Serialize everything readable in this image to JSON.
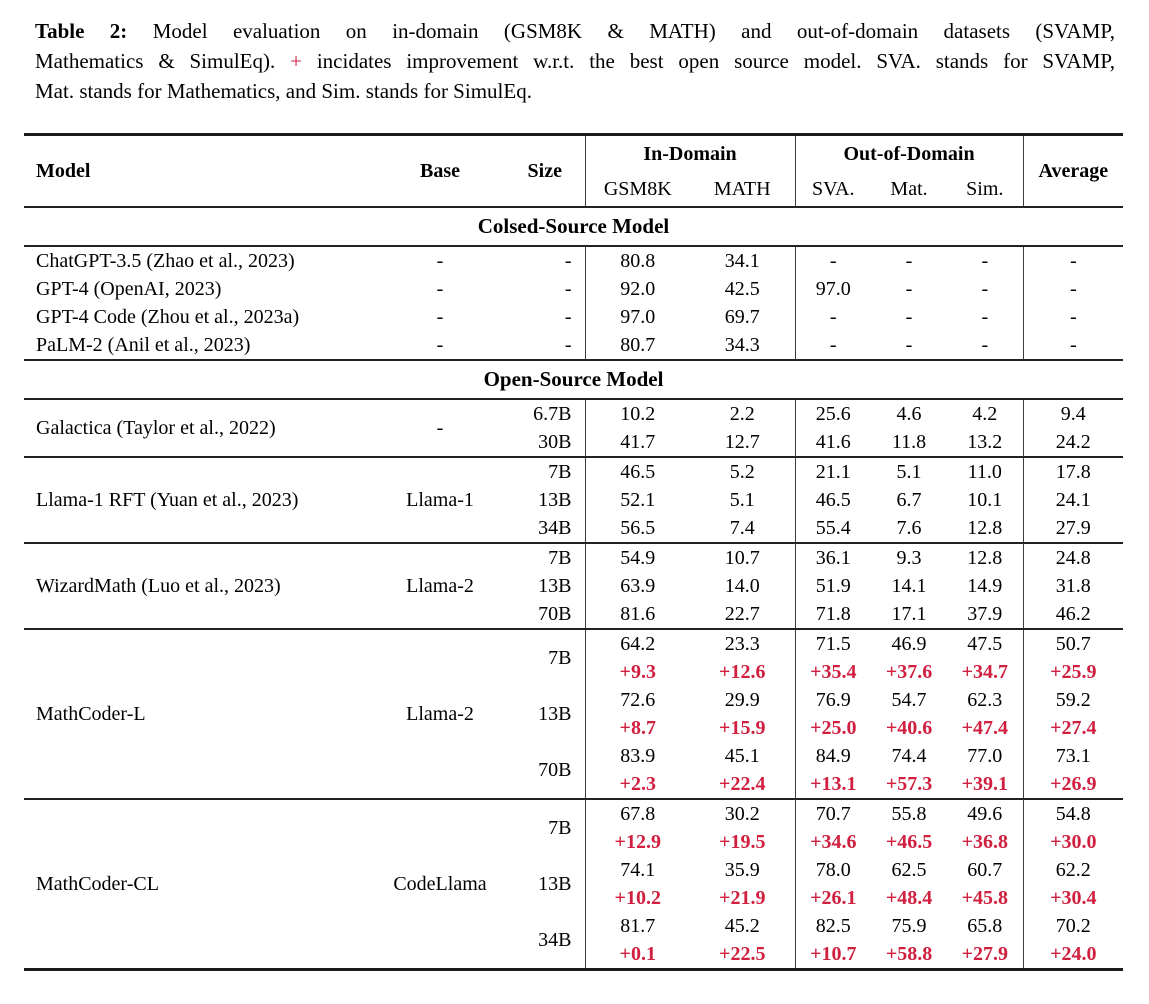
{
  "caption": {
    "line1_label": "Table 2:",
    "line1_text": "Model evaluation on in-domain (GSM8K & MATH) and out-of-domain datasets (SVAMP,",
    "line2_before_plus": "Mathematics & SimulEq).",
    "line2_plus": "+",
    "line2_after_plus": "incidates improvement w.r.t. the best open source model. SVA. stands for SVAMP,",
    "line3": "Mat. stands for Mathematics, and Sim. stands for SimulEq."
  },
  "colors": {
    "delta_red": "#d01f3f",
    "text": "#000000",
    "rule": "#222222"
  },
  "table": {
    "header": {
      "model": "Model",
      "base": "Base",
      "size": "Size",
      "in_domain": "In-Domain",
      "out_of_domain": "Out-of-Domain",
      "average": "Average",
      "subcolumns": [
        "GSM8K",
        "MATH",
        "SVA.",
        "Mat.",
        "Sim."
      ]
    },
    "sections": [
      {
        "title": "Colsed-Source Model",
        "ruled_groups": false,
        "groups": [
          {
            "model": "ChatGPT-3.5 (Zhao et al., 2023)",
            "base": "-",
            "rows": [
              {
                "size": "-",
                "values": [
                  "80.8",
                  "34.1",
                  "-",
                  "-",
                  "-",
                  "-"
                ]
              }
            ]
          },
          {
            "model": "GPT-4 (OpenAI, 2023)",
            "base": "-",
            "rows": [
              {
                "size": "-",
                "values": [
                  "92.0",
                  "42.5",
                  "97.0",
                  "-",
                  "-",
                  "-"
                ]
              }
            ]
          },
          {
            "model": "GPT-4 Code (Zhou et al., 2023a)",
            "base": "-",
            "rows": [
              {
                "size": "-",
                "values": [
                  "97.0",
                  "69.7",
                  "-",
                  "-",
                  "-",
                  "-"
                ]
              }
            ]
          },
          {
            "model": "PaLM-2 (Anil et al., 2023)",
            "base": "-",
            "rows": [
              {
                "size": "-",
                "values": [
                  "80.7",
                  "34.3",
                  "-",
                  "-",
                  "-",
                  "-"
                ]
              }
            ]
          }
        ]
      },
      {
        "title": "Open-Source Model",
        "ruled_groups": true,
        "groups": [
          {
            "model": "Galactica (Taylor et al., 2022)",
            "base": "-",
            "rows": [
              {
                "size": "6.7B",
                "values": [
                  "10.2",
                  "2.2",
                  "25.6",
                  "4.6",
                  "4.2",
                  "9.4"
                ]
              },
              {
                "size": "30B",
                "values": [
                  "41.7",
                  "12.7",
                  "41.6",
                  "11.8",
                  "13.2",
                  "24.2"
                ]
              }
            ]
          },
          {
            "model": "Llama-1 RFT (Yuan et al., 2023)",
            "base": "Llama-1",
            "rows": [
              {
                "size": "7B",
                "values": [
                  "46.5",
                  "5.2",
                  "21.1",
                  "5.1",
                  "11.0",
                  "17.8"
                ]
              },
              {
                "size": "13B",
                "values": [
                  "52.1",
                  "5.1",
                  "46.5",
                  "6.7",
                  "10.1",
                  "24.1"
                ]
              },
              {
                "size": "34B",
                "values": [
                  "56.5",
                  "7.4",
                  "55.4",
                  "7.6",
                  "12.8",
                  "27.9"
                ]
              }
            ]
          },
          {
            "model": "WizardMath (Luo et al., 2023)",
            "base": "Llama-2",
            "rows": [
              {
                "size": "7B",
                "values": [
                  "54.9",
                  "10.7",
                  "36.1",
                  "9.3",
                  "12.8",
                  "24.8"
                ]
              },
              {
                "size": "13B",
                "values": [
                  "63.9",
                  "14.0",
                  "51.9",
                  "14.1",
                  "14.9",
                  "31.8"
                ]
              },
              {
                "size": "70B",
                "values": [
                  "81.6",
                  "22.7",
                  "71.8",
                  "17.1",
                  "37.9",
                  "46.2"
                ]
              }
            ]
          },
          {
            "model": "MathCoder-L",
            "base": "Llama-2",
            "rows": [
              {
                "size": "7B",
                "values": [
                  "64.2",
                  "23.3",
                  "71.5",
                  "46.9",
                  "47.5",
                  "50.7"
                ],
                "deltas": [
                  "+9.3",
                  "+12.6",
                  "+35.4",
                  "+37.6",
                  "+34.7",
                  "+25.9"
                ]
              },
              {
                "size": "13B",
                "values": [
                  "72.6",
                  "29.9",
                  "76.9",
                  "54.7",
                  "62.3",
                  "59.2"
                ],
                "deltas": [
                  "+8.7",
                  "+15.9",
                  "+25.0",
                  "+40.6",
                  "+47.4",
                  "+27.4"
                ]
              },
              {
                "size": "70B",
                "values": [
                  "83.9",
                  "45.1",
                  "84.9",
                  "74.4",
                  "77.0",
                  "73.1"
                ],
                "deltas": [
                  "+2.3",
                  "+22.4",
                  "+13.1",
                  "+57.3",
                  "+39.1",
                  "+26.9"
                ]
              }
            ]
          },
          {
            "model": "MathCoder-CL",
            "base": "CodeLlama",
            "rows": [
              {
                "size": "7B",
                "values": [
                  "67.8",
                  "30.2",
                  "70.7",
                  "55.8",
                  "49.6",
                  "54.8"
                ],
                "deltas": [
                  "+12.9",
                  "+19.5",
                  "+34.6",
                  "+46.5",
                  "+36.8",
                  "+30.0"
                ]
              },
              {
                "size": "13B",
                "values": [
                  "74.1",
                  "35.9",
                  "78.0",
                  "62.5",
                  "60.7",
                  "62.2"
                ],
                "deltas": [
                  "+10.2",
                  "+21.9",
                  "+26.1",
                  "+48.4",
                  "+45.8",
                  "+30.4"
                ]
              },
              {
                "size": "34B",
                "values": [
                  "81.7",
                  "45.2",
                  "82.5",
                  "75.9",
                  "65.8",
                  "70.2"
                ],
                "deltas": [
                  "+0.1",
                  "+22.5",
                  "+10.7",
                  "+58.8",
                  "+27.9",
                  "+24.0"
                ]
              }
            ]
          }
        ]
      }
    ]
  }
}
